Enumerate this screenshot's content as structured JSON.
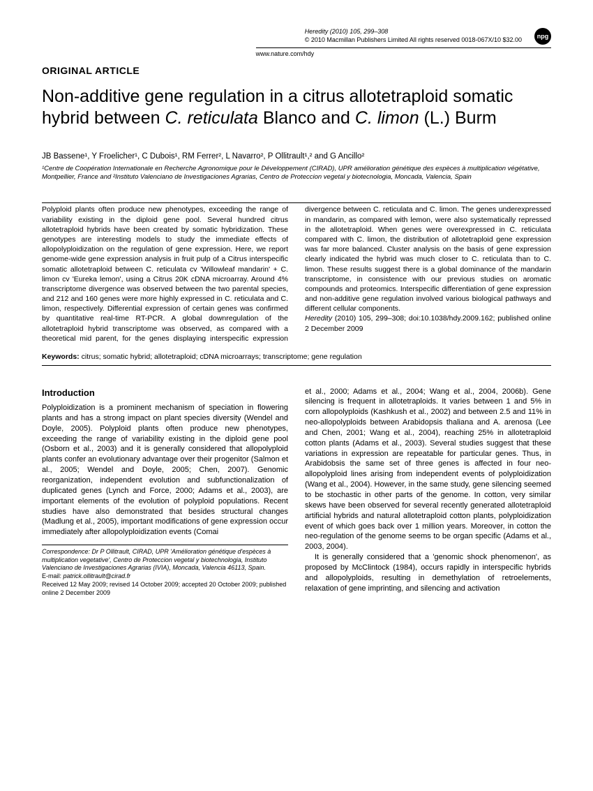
{
  "header": {
    "journal_line": "Heredity (2010) 105, 299–308",
    "copyright_line": "© 2010 Macmillan Publishers Limited  All rights reserved 0018-067X/10  $32.00",
    "url": "www.nature.com/hdy",
    "badge": "npg"
  },
  "article_type": "ORIGINAL ARTICLE",
  "title_parts": {
    "p1": "Non-additive gene regulation in a citrus allotetraploid somatic hybrid between ",
    "p2": "C. reticulata",
    "p3": " Blanco and ",
    "p4": "C. limon",
    "p5": " (L.) Burm"
  },
  "authors_html": "JB Bassene¹, Y Froelicher¹, C Dubois¹, RM Ferrer², L Navarro², P Ollitrault¹,² and G Ancillo²",
  "affiliations_html": "¹Centre de Coopération Internationale en Recherche Agronomique pour le Développement (CIRAD), UPR amélioration génétique des espèces à multiplication végétative, Montpellier, France and ²Instituto Valenciano de Investigaciones Agrarias, Centro de Proteccion vegetal y biotecnologia, Moncada, Valencia, Spain",
  "abstract": {
    "col1": "Polyploid plants often produce new phenotypes, exceeding the range of variability existing in the diploid gene pool. Several hundred citrus allotetraploid hybrids have been created by somatic hybridization. These genotypes are interesting models to study the immediate effects of allopolyploidization on the regulation of gene expression. Here, we report genome-wide gene expression analysis in fruit pulp of a Citrus interspecific somatic allotetraploid between C. reticulata cv 'Willowleaf mandarin' + C. limon cv 'Eureka lemon', using a Citrus 20K cDNA microarray. Around 4% transcriptome divergence was observed between the two parental species, and 212 and 160 genes were more highly expressed in C. reticulata and C. limon, respectively. Differential expression of certain genes was confirmed by quantitative real-time RT-PCR. A global downregulation of the allotetraploid hybrid transcriptome was observed, as compared with a theoretical mid parent, for the genes",
    "col2": "displaying interspecific expression divergence between C. reticulata and C. limon. The genes underexpressed in mandarin, as compared with lemon, were also systematically repressed in the allotetraploid. When genes were overexpressed in C. reticulata compared with C. limon, the distribution of allotetraploid gene expression was far more balanced. Cluster analysis on the basis of gene expression clearly indicated the hybrid was much closer to C. reticulata than to C. limon. These results suggest there is a global dominance of the mandarin transcriptome, in consistence with our previous studies on aromatic compounds and proteomics. Interspecific differentiation of gene expression and non-additive gene regulation involved various biological pathways and different cellular components."
  },
  "citation": {
    "journal": "Heredity",
    "rest": " (2010) 105, 299–308; doi:10.1038/hdy.2009.162; published online 2 December 2009"
  },
  "keywords_label": "Keywords:",
  "keywords_text": " citrus; somatic hybrid; allotetraploid; cDNA microarrays; transcriptome; gene regulation",
  "intro_head": "Introduction",
  "intro_p1": "Polyploidization is a prominent mechanism of speciation in flowering plants and has a strong impact on plant species diversity (Wendel and Doyle, 2005). Polyploid plants often produce new phenotypes, exceeding the range of variability existing in the diploid gene pool (Osborn et al., 2003) and it is generally considered that allopolyploid plants confer an evolutionary advantage over their progenitor (Salmon et al., 2005; Wendel and Doyle, 2005; Chen, 2007). Genomic reorganization, independent evolution and subfunctionalization of duplicated genes (Lynch and Force, 2000; Adams et al., 2003), are important elements of the evolution of polyploid populations. Recent studies have also demonstrated that besides structural changes (Madlung et al., 2005), important modifications of gene expression occur immediately after allopolyploidization events (Comai",
  "intro_p2": "et al., 2000; Adams et al., 2004; Wang et al., 2004, 2006b). Gene silencing is frequent in allotetraploids. It varies between 1 and 5% in corn allopolyploids (Kashkush et al., 2002) and between 2.5 and 11% in neo-allopolyploids between Arabidopsis thaliana and A. arenosa (Lee and Chen, 2001; Wang et al., 2004), reaching 25% in allotetraploid cotton plants (Adams et al., 2003). Several studies suggest that these variations in expression are repeatable for particular genes. Thus, in Arabidobsis the same set of three genes is affected in four neo-allopolyploid lines arising from independent events of polyploidization (Wang et al., 2004). However, in the same study, gene silencing seemed to be stochastic in other parts of the genome. In cotton, very similar skews have been observed for several recently generated allotetraploid artificial hybrids and natural allotetraploid cotton plants, polyploidization event of which goes back over 1 million years. Moreover, in cotton the neo-regulation of the genome seems to be organ specific (Adams et al., 2003, 2004).",
  "intro_p3": "It is generally considered that a 'genomic shock phenomenon', as proposed by McClintock (1984), occurs rapidly in interspecific hybrids and allopolyploids, resulting in demethylation of retroelements, relaxation of gene imprinting, and silencing and activation",
  "correspondence": {
    "line1": "Correspondence: Dr P Ollitrault, CIRAD, UPR 'Amélioration génétique d'espèces à multiplication vegetative', Centro de Proteccion vegetal y biotechnologia, Instituto Valenciano de Investigaciones Agrarias (IVIA), Moncada, Valencia 46113, Spain.",
    "email_label": "E-mail: ",
    "email": "patrick.ollitrault@cirad.fr",
    "received": "Received 12 May 2009; revised 14 October 2009; accepted 20 October 2009; published online 2 December 2009"
  }
}
